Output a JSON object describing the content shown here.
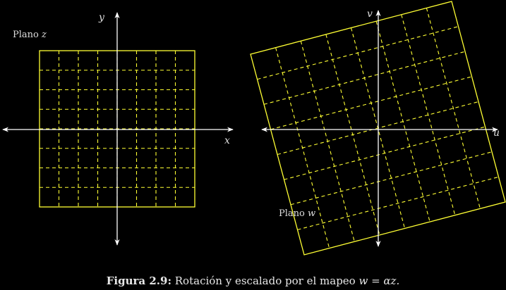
{
  "colors": {
    "background": "#000000",
    "axis": "#ffffff",
    "grid": "#ffff33",
    "label": "#dddddd"
  },
  "z_plane": {
    "label_text": "Plano ",
    "label_var": "z",
    "x_axis_label": "x",
    "y_axis_label": "y"
  },
  "w_plane": {
    "label_text": "Plano ",
    "label_var": "w",
    "u_axis_label": "u",
    "v_axis_label": "v"
  },
  "caption": {
    "prefix": "Figura 2.9:",
    "text": " Rotación y escalado por el mapeo ",
    "formula": "w = αz."
  }
}
